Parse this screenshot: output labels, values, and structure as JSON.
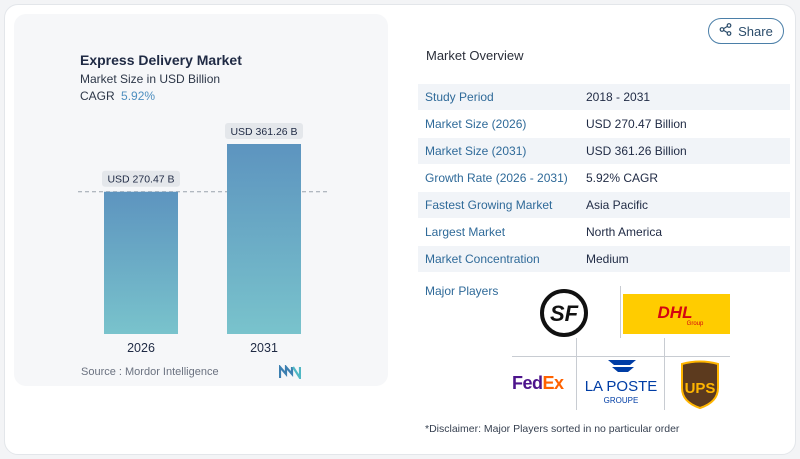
{
  "chart_data": {
    "type": "bar",
    "title": "Express Delivery Market",
    "subtitle": "Market Size in USD Billion",
    "cagr_label": "CAGR",
    "cagr_value": "5.92%",
    "categories": [
      "2026",
      "2031"
    ],
    "values": [
      270.47,
      361.26
    ],
    "value_labels": [
      "USD 270.47 B",
      "USD 361.26 B"
    ],
    "colors": {
      "bar_top": "#5d94bf",
      "bar_bottom": "#79c3cc",
      "label_bg": "#e4e7eb"
    },
    "source": "Source :  Mordor Intelligence"
  },
  "share": {
    "label": "Share",
    "icon": "share-icon"
  },
  "overview": {
    "title": "Market Overview",
    "rows": [
      {
        "label": "Study Period",
        "value": "2018 - 2031"
      },
      {
        "label": "Market Size (2026)",
        "value": "USD 270.47 Billion"
      },
      {
        "label": "Market Size (2031)",
        "value": "USD 361.26 Billion"
      },
      {
        "label": "Growth Rate (2026 - 2031)",
        "value": "5.92% CAGR"
      },
      {
        "label": "Fastest Growing Market",
        "value": "Asia Pacific"
      },
      {
        "label": "Largest Market",
        "value": "North America"
      },
      {
        "label": "Market Concentration",
        "value": "Medium"
      }
    ]
  },
  "players": {
    "label": "Major Players",
    "logos": {
      "sf": "SF",
      "dhl": "DHL",
      "dhl_sub": "Group",
      "fedex_fed": "Fed",
      "fedex_ex": "Ex",
      "laposte": "LA POSTE",
      "laposte_sub": "GROUPE",
      "ups": "UPS"
    }
  },
  "disclaimer": "*Disclaimer: Major Players sorted in no particular order"
}
